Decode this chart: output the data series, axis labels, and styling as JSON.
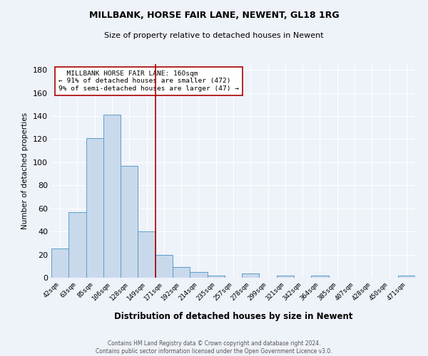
{
  "title_line1": "MILLBANK, HORSE FAIR LANE, NEWENT, GL18 1RG",
  "title_line2": "Size of property relative to detached houses in Newent",
  "xlabel": "Distribution of detached houses by size in Newent",
  "ylabel": "Number of detached properties",
  "categories": [
    "42sqm",
    "63sqm",
    "85sqm",
    "106sqm",
    "128sqm",
    "149sqm",
    "171sqm",
    "192sqm",
    "214sqm",
    "235sqm",
    "257sqm",
    "278sqm",
    "299sqm",
    "321sqm",
    "342sqm",
    "364sqm",
    "385sqm",
    "407sqm",
    "428sqm",
    "450sqm",
    "471sqm"
  ],
  "values": [
    25,
    57,
    121,
    141,
    97,
    40,
    20,
    9,
    5,
    2,
    0,
    4,
    0,
    2,
    0,
    2,
    0,
    0,
    0,
    0,
    2
  ],
  "bar_color": "#c9d9ec",
  "bar_edge_color": "#5a9ec8",
  "property_bin_index": 5.5,
  "vline_color": "#aa0000",
  "annotation_text": "  MILLBANK HORSE FAIR LANE: 160sqm\n← 91% of detached houses are smaller (472)\n9% of semi-detached houses are larger (47) →",
  "annotation_box_color": "#ffffff",
  "annotation_box_edge": "#aa0000",
  "ylim": [
    0,
    185
  ],
  "yticks": [
    0,
    20,
    40,
    60,
    80,
    100,
    120,
    140,
    160,
    180
  ],
  "footer_line1": "Contains HM Land Registry data © Crown copyright and database right 2024.",
  "footer_line2": "Contains public sector information licensed under the Open Government Licence v3.0.",
  "background_color": "#eef2f9"
}
